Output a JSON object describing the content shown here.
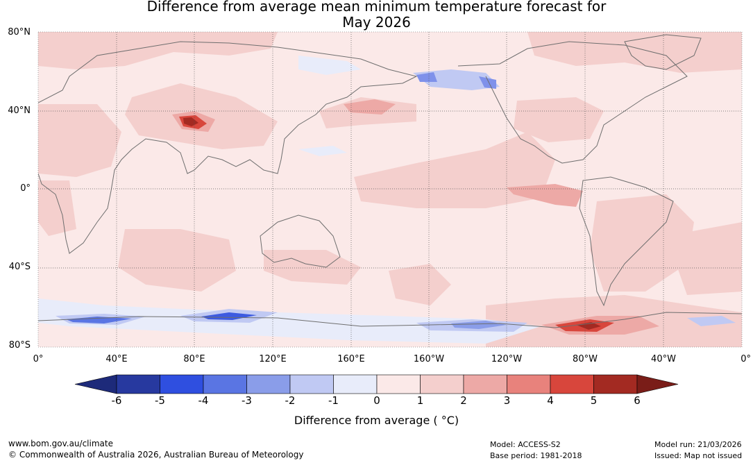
{
  "title": {
    "line1": "Difference from average mean minimum temperature forecast for",
    "line2": "May 2026"
  },
  "map": {
    "lat_labels": [
      "80°N",
      "40°N",
      "0°",
      "40°S",
      "80°S"
    ],
    "lon_labels": [
      "0°",
      "40°E",
      "80°E",
      "120°E",
      "160°E",
      "160°W",
      "120°W",
      "80°W",
      "40°W",
      "0°"
    ],
    "anomaly_regions": [
      {
        "name": "central-asia-warm",
        "level": "+3 to +5",
        "color": "#a52a22"
      },
      {
        "name": "east-pacific-warm",
        "level": "+2 to +3",
        "color": "#eb817a"
      },
      {
        "name": "antarctic-warm",
        "level": "+3 to +5",
        "color": "#d6463c"
      },
      {
        "name": "antarctic-cold-indian",
        "level": "-3 to -5",
        "color": "#3d5be0"
      },
      {
        "name": "alaska-cold",
        "level": "-1 to -3",
        "color": "#7f91ea"
      }
    ]
  },
  "colorbar": {
    "ticks": [
      "-6",
      "-5",
      "-4",
      "-3",
      "-2",
      "-1",
      "0",
      "1",
      "2",
      "3",
      "4",
      "5",
      "6"
    ],
    "colors": [
      "#27399f",
      "#2f4fe0",
      "#5a75e3",
      "#8a9de9",
      "#c0c9f3",
      "#e8ecfa",
      "#fbe9e8",
      "#f4cfcd",
      "#eda9a6",
      "#e8827c",
      "#d8463c",
      "#a32a22"
    ],
    "under_color": "#1d2a7a",
    "over_color": "#7a1d18",
    "label": "Difference from average ( °C)"
  },
  "footer": {
    "url": "www.bom.gov.au/climate",
    "copyright": "© Commonwealth of Australia 2026, Australian Bureau of Meteorology",
    "model": "Model: ACCESS-S2",
    "base_period": "Base period: 1981-2018",
    "model_run": "Model run: 21/03/2026",
    "issued": "Issued: Map not issued"
  }
}
